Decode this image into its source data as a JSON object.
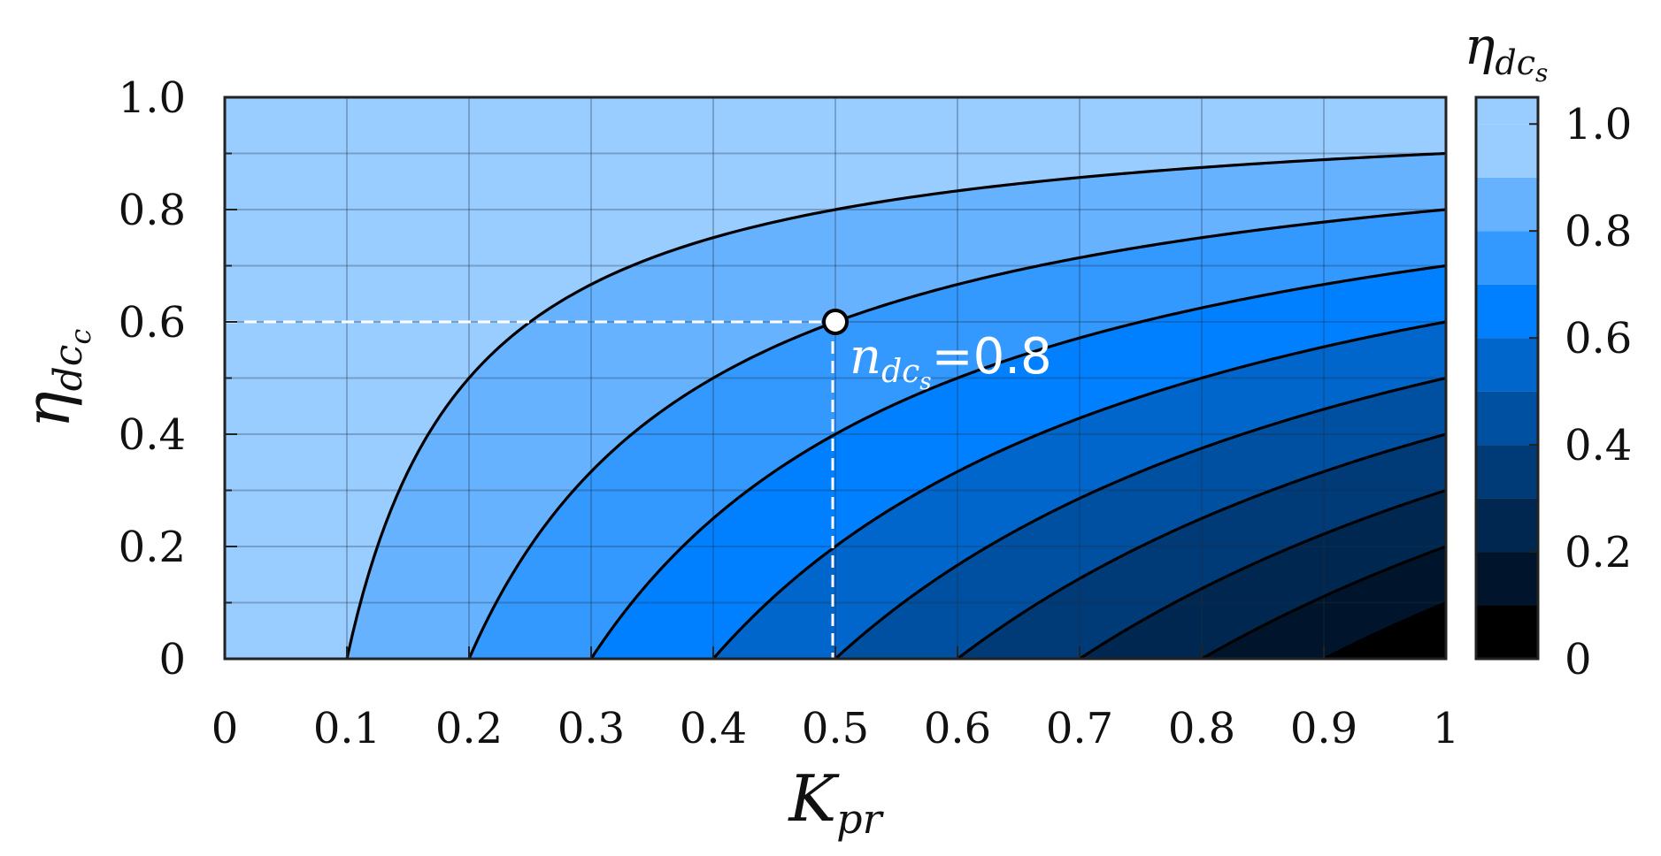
{
  "chart_data": {
    "type": "contour",
    "function": "eta_dc_s = 1 - K_pr * (1 - eta_dc_c)",
    "x": {
      "label_main": "K",
      "label_sub": "pr",
      "range": [
        0,
        1
      ],
      "ticks": [
        "0",
        "0.1",
        "0.2",
        "0.3",
        "0.4",
        "0.5",
        "0.6",
        "0.7",
        "0.8",
        "0.9",
        "1"
      ],
      "tick_values": [
        0,
        0.1,
        0.2,
        0.3,
        0.4,
        0.5,
        0.6,
        0.7,
        0.8,
        0.9,
        1
      ]
    },
    "y": {
      "label_main": "η",
      "label_sub": "dc",
      "label_subsub": "c",
      "range": [
        0,
        1
      ],
      "ticks": [
        "0",
        "0.2",
        "0.4",
        "0.6",
        "0.8",
        "1.0"
      ],
      "tick_values": [
        0,
        0.2,
        0.4,
        0.6,
        0.8,
        1.0
      ]
    },
    "contour_levels": [
      0.1,
      0.2,
      0.3,
      0.4,
      0.5,
      0.6,
      0.7,
      0.8,
      0.9
    ],
    "band_colors": [
      "#000000",
      "#00152b",
      "#00274f",
      "#003a77",
      "#0050a2",
      "#0066cc",
      "#0080ff",
      "#3399ff",
      "#66b2ff",
      "#99ccff",
      "#cce5ff"
    ],
    "colorbar": {
      "title_main": "η",
      "title_sub": "dc",
      "title_subsub": "s",
      "ticks": [
        "0",
        "0.2",
        "0.4",
        "0.6",
        "0.8",
        "1.0"
      ],
      "tick_values": [
        0,
        0.2,
        0.4,
        0.6,
        0.8,
        1.0
      ],
      "range": [
        0,
        1.05
      ]
    },
    "annotation": {
      "point": {
        "x": 0.5,
        "y": 0.6
      },
      "text_main": "n",
      "text_sub": "dc",
      "text_subsub": "s",
      "text_eq": "=0.8"
    },
    "grid": true
  }
}
